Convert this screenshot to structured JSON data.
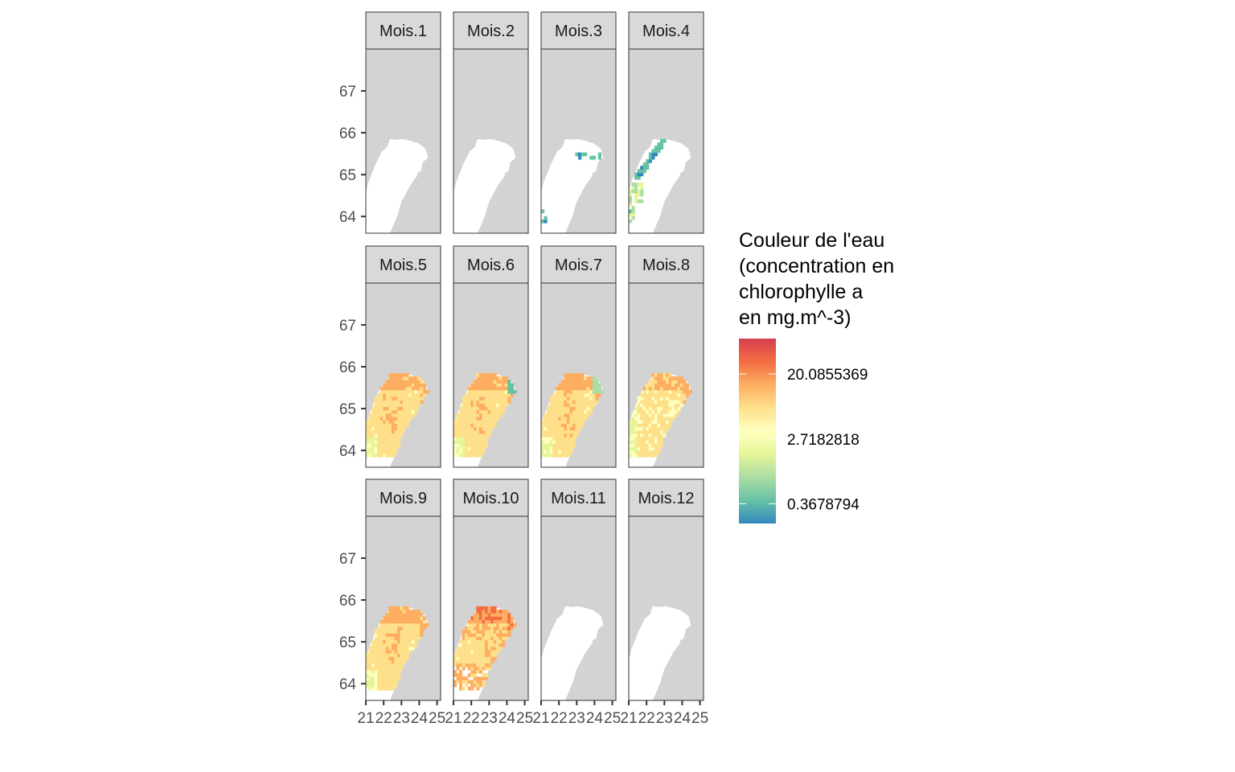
{
  "chart_data": {
    "type": "heatmap",
    "layout": {
      "rows": 3,
      "cols": 4
    },
    "panels": [
      {
        "label": "Mois.1",
        "fill": "none"
      },
      {
        "label": "Mois.2",
        "fill": "none"
      },
      {
        "label": "Mois.3",
        "fill": "sparse-low"
      },
      {
        "label": "Mois.4",
        "fill": "partial-low"
      },
      {
        "label": "Mois.5",
        "fill": "full-high"
      },
      {
        "label": "Mois.6",
        "fill": "full-high"
      },
      {
        "label": "Mois.7",
        "fill": "full-high"
      },
      {
        "label": "Mois.8",
        "fill": "full-mid"
      },
      {
        "label": "Mois.9",
        "fill": "full-high"
      },
      {
        "label": "Mois.10",
        "fill": "partial-high"
      },
      {
        "label": "Mois.11",
        "fill": "none"
      },
      {
        "label": "Mois.12",
        "fill": "none"
      }
    ],
    "y_ticks": [
      "67",
      "66",
      "65",
      "64"
    ],
    "y_tick_values": [
      67,
      66,
      65,
      64
    ],
    "x_ticks": [
      "21",
      "22",
      "23",
      "24",
      "25"
    ],
    "x_tick_values": [
      21,
      22,
      23,
      24,
      25
    ],
    "xlim": [
      21,
      25.2
    ],
    "ylim": [
      63.6,
      68.0
    ],
    "legend": {
      "title_lines": [
        "Couleur de l'eau",
        "(concentration en",
        "chlorophylle a",
        "en mg.m^-3)"
      ],
      "labels": [
        "20.0855369",
        "2.7182818",
        "0.3678794"
      ],
      "label_values": [
        20.0855369,
        2.7182818,
        0.3678794
      ],
      "log_scale": true,
      "position": "right"
    },
    "colors": {
      "panel_background": "#d3d3d3",
      "land": "#ffffff",
      "strip_background": "#d9d9d9",
      "scale": [
        "#3288bd",
        "#66c2a5",
        "#abdda4",
        "#e6f598",
        "#ffffbf",
        "#fee08b",
        "#fdae61",
        "#f46d43",
        "#d53e4f"
      ]
    }
  }
}
